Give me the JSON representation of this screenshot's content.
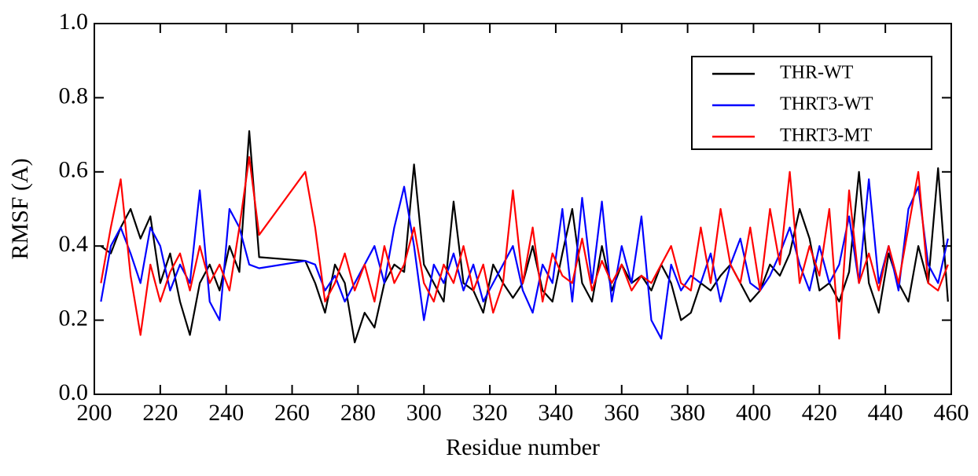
{
  "chart_data": {
    "type": "line",
    "xlabel": "Residue number",
    "ylabel": "RMSF (A)",
    "x": [
      202,
      205,
      208,
      211,
      214,
      217,
      220,
      223,
      226,
      229,
      232,
      235,
      238,
      241,
      244,
      247,
      250,
      264,
      267,
      270,
      273,
      276,
      279,
      282,
      285,
      288,
      291,
      294,
      297,
      300,
      303,
      306,
      309,
      312,
      315,
      318,
      321,
      324,
      327,
      330,
      333,
      336,
      339,
      342,
      345,
      348,
      351,
      354,
      357,
      360,
      363,
      366,
      369,
      372,
      375,
      378,
      381,
      384,
      387,
      390,
      393,
      396,
      399,
      402,
      405,
      408,
      411,
      414,
      417,
      420,
      423,
      426,
      429,
      432,
      435,
      438,
      441,
      444,
      447,
      450,
      453,
      456,
      459
    ],
    "series": [
      {
        "name": "THR-WT",
        "color": "#000000",
        "values": [
          0.4,
          0.38,
          0.45,
          0.5,
          0.42,
          0.48,
          0.3,
          0.38,
          0.25,
          0.16,
          0.3,
          0.35,
          0.28,
          0.4,
          0.33,
          0.71,
          0.37,
          0.36,
          0.3,
          0.22,
          0.35,
          0.3,
          0.14,
          0.22,
          0.18,
          0.3,
          0.35,
          0.33,
          0.62,
          0.35,
          0.3,
          0.25,
          0.52,
          0.3,
          0.28,
          0.22,
          0.35,
          0.3,
          0.26,
          0.3,
          0.4,
          0.28,
          0.25,
          0.38,
          0.5,
          0.3,
          0.25,
          0.4,
          0.28,
          0.35,
          0.3,
          0.32,
          0.28,
          0.35,
          0.3,
          0.2,
          0.22,
          0.3,
          0.28,
          0.32,
          0.35,
          0.3,
          0.25,
          0.28,
          0.35,
          0.32,
          0.38,
          0.5,
          0.42,
          0.28,
          0.3,
          0.25,
          0.33,
          0.6,
          0.3,
          0.22,
          0.38,
          0.3,
          0.25,
          0.4,
          0.3,
          0.61,
          0.25
        ]
      },
      {
        "name": "THRT3-WT",
        "color": "#0000ff",
        "values": [
          0.25,
          0.4,
          0.45,
          0.38,
          0.3,
          0.45,
          0.4,
          0.28,
          0.35,
          0.3,
          0.55,
          0.25,
          0.2,
          0.5,
          0.45,
          0.35,
          0.34,
          0.36,
          0.35,
          0.28,
          0.32,
          0.25,
          0.3,
          0.35,
          0.4,
          0.3,
          0.45,
          0.56,
          0.4,
          0.2,
          0.35,
          0.3,
          0.38,
          0.28,
          0.35,
          0.25,
          0.3,
          0.35,
          0.4,
          0.28,
          0.22,
          0.35,
          0.3,
          0.5,
          0.25,
          0.53,
          0.3,
          0.52,
          0.25,
          0.4,
          0.3,
          0.48,
          0.2,
          0.15,
          0.35,
          0.28,
          0.32,
          0.3,
          0.38,
          0.25,
          0.35,
          0.42,
          0.3,
          0.28,
          0.32,
          0.38,
          0.45,
          0.35,
          0.28,
          0.4,
          0.3,
          0.35,
          0.48,
          0.3,
          0.58,
          0.3,
          0.4,
          0.28,
          0.5,
          0.56,
          0.35,
          0.3,
          0.42
        ]
      },
      {
        "name": "THRT3-MT",
        "color": "#ff0000",
        "values": [
          0.3,
          0.45,
          0.58,
          0.32,
          0.16,
          0.35,
          0.25,
          0.33,
          0.38,
          0.28,
          0.4,
          0.3,
          0.35,
          0.28,
          0.45,
          0.64,
          0.43,
          0.6,
          0.45,
          0.25,
          0.3,
          0.38,
          0.28,
          0.35,
          0.25,
          0.4,
          0.3,
          0.35,
          0.45,
          0.3,
          0.25,
          0.35,
          0.3,
          0.4,
          0.28,
          0.35,
          0.22,
          0.3,
          0.55,
          0.3,
          0.45,
          0.25,
          0.38,
          0.32,
          0.3,
          0.42,
          0.28,
          0.36,
          0.3,
          0.35,
          0.28,
          0.32,
          0.3,
          0.35,
          0.4,
          0.3,
          0.28,
          0.45,
          0.3,
          0.5,
          0.35,
          0.3,
          0.45,
          0.28,
          0.5,
          0.35,
          0.6,
          0.3,
          0.4,
          0.32,
          0.5,
          0.15,
          0.55,
          0.3,
          0.38,
          0.28,
          0.4,
          0.3,
          0.45,
          0.6,
          0.3,
          0.28,
          0.35
        ]
      }
    ],
    "xlim": [
      200,
      460
    ],
    "xticks": [
      200,
      220,
      240,
      260,
      280,
      300,
      320,
      340,
      360,
      380,
      400,
      420,
      440,
      460
    ],
    "ylim": [
      0,
      1
    ],
    "yticks": [
      {
        "value": 0,
        "label": "0.0"
      },
      0.2,
      0.4,
      0.6,
      0.8,
      {
        "value": 1,
        "label": "1.0"
      }
    ],
    "legend": "upper right"
  }
}
